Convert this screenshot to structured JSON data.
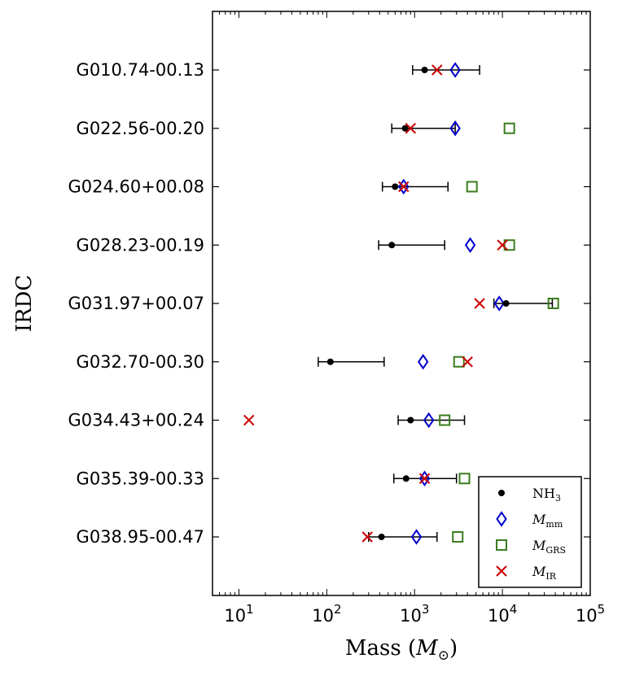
{
  "chart_data": {
    "type": "scatter",
    "xscale": "log",
    "xlim": [
      5,
      100000
    ],
    "xlabel": "Mass (M_⊙)",
    "xlabel_parts": {
      "prefix": "Mass (",
      "symbol": "M",
      "sub": "⊙",
      "suffix": ")"
    },
    "ylabel": "IRDC",
    "xticks": [
      {
        "value": 10,
        "base": "10",
        "exp": "1"
      },
      {
        "value": 100,
        "base": "10",
        "exp": "2"
      },
      {
        "value": 1000,
        "base": "10",
        "exp": "3"
      },
      {
        "value": 10000,
        "base": "10",
        "exp": "4"
      },
      {
        "value": 100000,
        "base": "10",
        "exp": "5"
      }
    ],
    "categories": [
      "G010.74-00.13",
      "G022.56-00.20",
      "G024.60+00.08",
      "G028.23-00.19",
      "G031.97+00.07",
      "G032.70-00.30",
      "G034.43+00.24",
      "G035.39-00.33",
      "G038.95-00.47"
    ],
    "series": [
      {
        "name": "NH3",
        "label_main": "NH",
        "label_sub": "3",
        "label_italic": false,
        "marker": "dot",
        "color": "#000000",
        "values": [
          1300,
          780,
          600,
          550,
          11000,
          110,
          900,
          800,
          420
        ],
        "err_low": [
          950,
          550,
          430,
          390,
          8000,
          80,
          650,
          580,
          300
        ],
        "err_high": [
          5500,
          2900,
          2400,
          2200,
          37000,
          450,
          3700,
          3000,
          1800
        ]
      },
      {
        "name": "M_mm",
        "label_main": "M",
        "label_sub": "mm",
        "label_italic": true,
        "marker": "diamond",
        "color": "#0000cc",
        "values": [
          2900,
          2900,
          750,
          4300,
          9200,
          1250,
          1450,
          1300,
          1050
        ]
      },
      {
        "name": "M_GRS",
        "label_main": "M",
        "label_sub": "GRS",
        "label_italic": true,
        "marker": "square",
        "color": "#3a7d1e",
        "values": [
          null,
          12000,
          4500,
          12000,
          38000,
          3200,
          2200,
          3700,
          3100
        ]
      },
      {
        "name": "M_IR",
        "label_main": "M",
        "label_sub": "IR",
        "label_italic": true,
        "marker": "x",
        "color": "#cc0000",
        "values": [
          1800,
          900,
          750,
          10000,
          5500,
          4000,
          13,
          1300,
          290
        ]
      }
    ],
    "legend": "bottom-right"
  }
}
